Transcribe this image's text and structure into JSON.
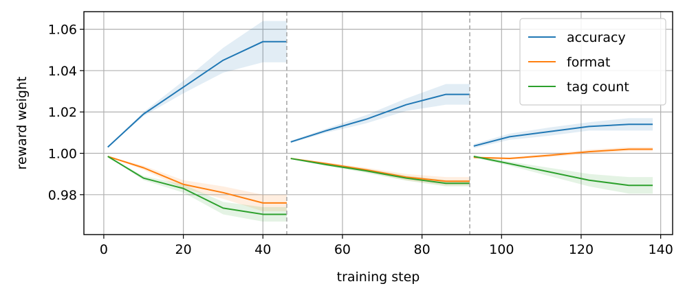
{
  "chart_data": {
    "type": "line",
    "title": "",
    "xlabel": "training step",
    "ylabel": "reward weight",
    "xlim": [
      -5,
      143
    ],
    "ylim": [
      0.9607,
      1.0685
    ],
    "xticks": [
      0,
      20,
      40,
      60,
      80,
      100,
      120,
      140
    ],
    "yticks": [
      0.98,
      1.0,
      1.02,
      1.04,
      1.06
    ],
    "ytick_labels": [
      "0.98",
      "1.00",
      "1.02",
      "1.04",
      "1.06"
    ],
    "grid": true,
    "legend_position": "top-right",
    "vertical_lines": [
      46,
      92
    ],
    "series": [
      {
        "name": "accuracy",
        "color": "#1f77b4",
        "segments": [
          {
            "x": [
              1,
              10,
              20,
              30,
              40,
              46
            ],
            "y": [
              1.003,
              1.019,
              1.032,
              1.045,
              1.054,
              1.054
            ],
            "band": [
              0.0,
              0.001,
              0.003,
              0.006,
              0.01,
              0.01
            ]
          },
          {
            "x": [
              47,
              56,
              66,
              76,
              86,
              92
            ],
            "y": [
              1.0055,
              1.011,
              1.0165,
              1.0235,
              1.0285,
              1.0285
            ],
            "band": [
              0.0005,
              0.001,
              0.002,
              0.003,
              0.005,
              0.005
            ]
          },
          {
            "x": [
              93,
              102,
              112,
              122,
              132,
              138
            ],
            "y": [
              1.0035,
              1.008,
              1.0105,
              1.013,
              1.014,
              1.014
            ],
            "band": [
              0.001,
              0.0015,
              0.002,
              0.002,
              0.003,
              0.003
            ]
          }
        ]
      },
      {
        "name": "format",
        "color": "#ff7f0e",
        "segments": [
          {
            "x": [
              1,
              10,
              20,
              30,
              40,
              46
            ],
            "y": [
              0.9985,
              0.993,
              0.985,
              0.981,
              0.976,
              0.976
            ],
            "band": [
              0.0,
              0.001,
              0.002,
              0.003,
              0.004,
              0.004
            ]
          },
          {
            "x": [
              47,
              56,
              66,
              76,
              86,
              92
            ],
            "y": [
              0.9975,
              0.995,
              0.992,
              0.9885,
              0.9865,
              0.9865
            ],
            "band": [
              0.0003,
              0.0006,
              0.001,
              0.0015,
              0.002,
              0.002
            ]
          },
          {
            "x": [
              93,
              102,
              112,
              122,
              132,
              138
            ],
            "y": [
              0.998,
              0.9975,
              0.999,
              1.0008,
              1.002,
              1.002
            ],
            "band": [
              0.0003,
              0.0005,
              0.0008,
              0.001,
              0.001,
              0.001
            ]
          }
        ]
      },
      {
        "name": "tag count",
        "color": "#2ca02c",
        "segments": [
          {
            "x": [
              1,
              10,
              20,
              30,
              40,
              46
            ],
            "y": [
              0.9985,
              0.988,
              0.983,
              0.9735,
              0.9705,
              0.9705
            ],
            "band": [
              0.0,
              0.001,
              0.002,
              0.003,
              0.0035,
              0.0035
            ]
          },
          {
            "x": [
              47,
              56,
              66,
              76,
              86,
              92
            ],
            "y": [
              0.9975,
              0.9945,
              0.9915,
              0.988,
              0.9855,
              0.9855
            ],
            "band": [
              0.0003,
              0.0006,
              0.001,
              0.0012,
              0.0015,
              0.0015
            ]
          },
          {
            "x": [
              93,
              102,
              112,
              122,
              132,
              138
            ],
            "y": [
              0.9985,
              0.995,
              0.991,
              0.987,
              0.9845,
              0.9845
            ],
            "band": [
              0.0005,
              0.001,
              0.002,
              0.003,
              0.004,
              0.004
            ]
          }
        ]
      }
    ]
  }
}
